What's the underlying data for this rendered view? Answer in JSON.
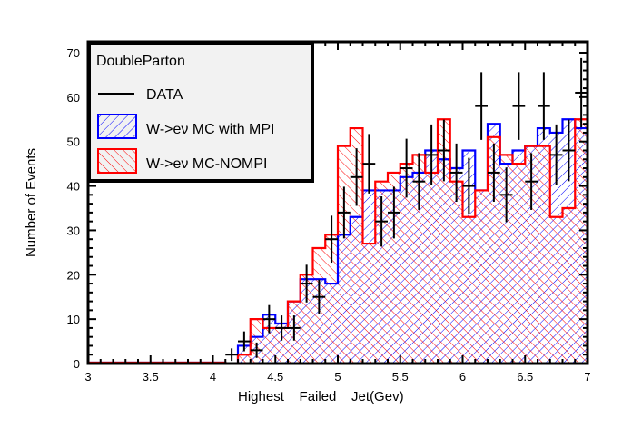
{
  "chart_data": {
    "type": "bar",
    "subtype": "histogram-with-data-points",
    "title": "",
    "xlabel": "Highest    Failed    Jet(Gev)",
    "ylabel": "Number of Events",
    "xlim": [
      3,
      7
    ],
    "ylim": [
      0,
      70
    ],
    "x_ticks": [
      "3",
      "3.5",
      "4",
      "4.5",
      "5",
      "5.5",
      "6",
      "6.5",
      "7"
    ],
    "x_tick_values": [
      3,
      3.5,
      4,
      4.5,
      5,
      5.5,
      6,
      6.5,
      7
    ],
    "y_ticks": [
      "0",
      "10",
      "20",
      "30",
      "40",
      "50",
      "60",
      "70"
    ],
    "y_tick_values": [
      0,
      10,
      20,
      30,
      40,
      50,
      60,
      70
    ],
    "grid": false,
    "bin_edges_start": 4.1,
    "bin_width": 0.1,
    "legend": {
      "placement": "top-left",
      "header": "DoubleParton",
      "entries": [
        {
          "label": "DATA",
          "style": "line",
          "color": "#000000"
        },
        {
          "label": "W->eν MC with MPI",
          "style": "hatch-forward",
          "color": "#0000ff"
        },
        {
          "label": "W->eν MC-NOMPI",
          "style": "hatch-backward",
          "color": "#ff0000"
        }
      ]
    },
    "series": [
      {
        "name": "W->eν MC with MPI",
        "color": "#0000ff",
        "values": [
          0,
          4,
          6,
          11,
          9,
          14,
          19,
          19,
          18,
          29,
          33,
          39,
          39,
          39,
          42,
          43,
          48,
          46,
          44,
          48,
          39,
          54,
          45,
          48,
          49,
          53,
          52,
          55,
          53
        ]
      },
      {
        "name": "W->eν MC-NOMPI",
        "color": "#ff0000",
        "values": [
          0,
          2,
          10,
          8,
          8,
          14,
          20,
          26,
          29,
          49,
          53,
          27,
          41,
          43,
          45,
          47,
          43,
          55,
          41,
          33,
          39,
          51,
          47,
          45,
          49,
          49,
          33,
          35,
          55
        ]
      },
      {
        "name": "DATA",
        "color": "#000000",
        "x": [
          4.15,
          4.25,
          4.35,
          4.45,
          4.55,
          4.65,
          4.75,
          4.85,
          4.95,
          5.05,
          5.15,
          5.25,
          5.35,
          5.45,
          5.55,
          5.65,
          5.75,
          5.85,
          5.95,
          6.05,
          6.15,
          6.25,
          6.35,
          6.45,
          6.55,
          6.65,
          6.75,
          6.85,
          6.95
        ],
        "values": [
          2,
          5,
          3,
          10,
          8,
          8,
          18,
          15,
          28,
          34,
          42,
          45,
          32,
          34,
          44,
          41,
          47,
          48,
          43,
          40,
          58,
          43,
          38,
          58,
          41,
          58,
          47,
          48,
          61
        ]
      }
    ]
  }
}
